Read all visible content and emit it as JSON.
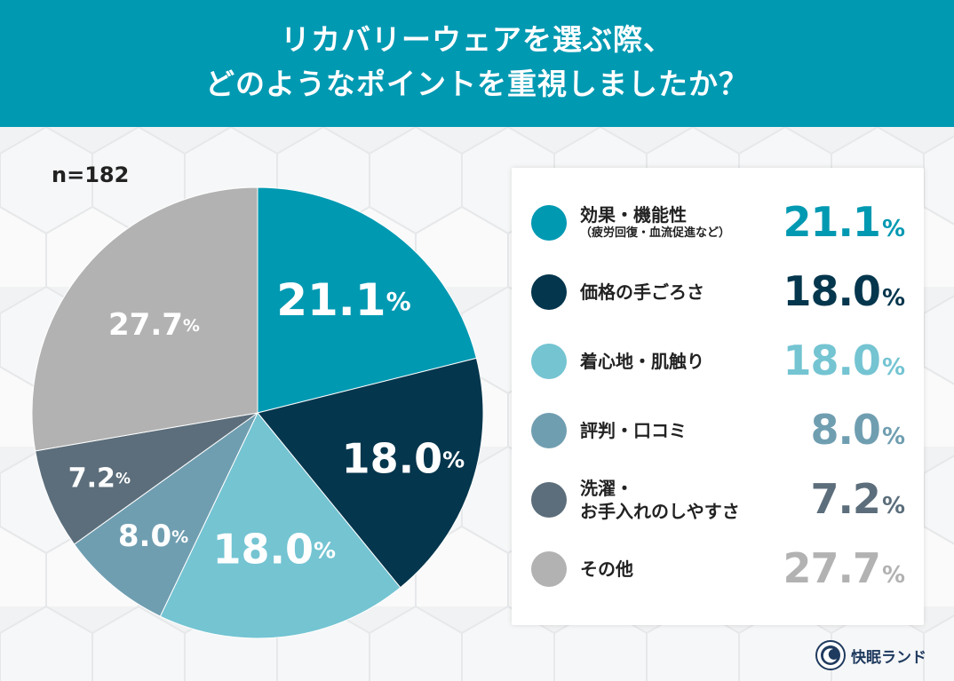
{
  "title": {
    "line1": "リカバリーウェアを選ぶ際、",
    "line2": "どのようなポイントを重視しましたか？"
  },
  "sample_size": "n=182",
  "chart_data": {
    "type": "pie",
    "title": "リカバリーウェアを選ぶ際、どのようなポイントを重視しましたか？",
    "categories": [
      "効果・機能性（疲労回復・血流促進など）",
      "価格の手ごろさ",
      "着心地・肌触り",
      "評判・口コミ",
      "洗濯・お手入れのしやすさ",
      "その他"
    ],
    "values": [
      21.1,
      18.0,
      18.0,
      8.0,
      7.2,
      27.7
    ],
    "unit": "%",
    "legend": "right"
  },
  "legend": [
    {
      "label": "効果・機能性",
      "sub": "（疲労回復・血流促進など）",
      "value": "21.1",
      "color": "#0099b2"
    },
    {
      "label": "価格の手ごろさ",
      "sub": "",
      "value": "18.0",
      "color": "#04364d"
    },
    {
      "label": "着心地・肌触り",
      "sub": "",
      "value": "18.0",
      "color": "#74c4d2"
    },
    {
      "label": "評判・口コミ",
      "sub": "",
      "value": "8.0",
      "color": "#709eb1"
    },
    {
      "label": "洗濯・",
      "sub": "お手入れのしやすさ",
      "value": "7.2",
      "color": "#5c6e7b"
    },
    {
      "label": "その他",
      "sub": "",
      "value": "27.7",
      "color": "#b2b2b2"
    }
  ],
  "pct_symbol": "%",
  "logo": {
    "name": "快眠ランド",
    "icon": "moon-logo-icon"
  }
}
